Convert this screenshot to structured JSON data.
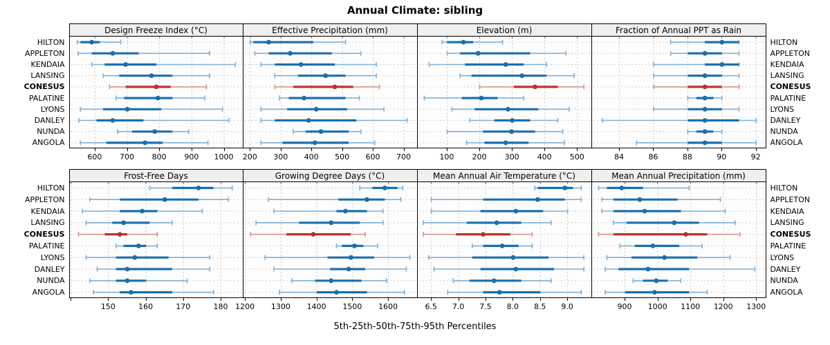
{
  "title": "Annual Climate: sibling",
  "caption": "5th-25th-50th-75th-95th Percentiles",
  "colors": {
    "series": "#1a6fad",
    "series_light": "#7fb0d6",
    "highlight": "#b5342c",
    "highlight_light": "#d8938c",
    "grid": "#c8c8c8",
    "row_guide": "#cccccc",
    "panel_border": "#000000",
    "strip_bg": "#efefef",
    "tick": "#000000"
  },
  "chart_data": {
    "type": "trellis_percentile_dotplot",
    "title": "Annual Climate: sibling",
    "caption": "5th-25th-50th-75th-95th Percentiles",
    "layout": {
      "nrow": 2,
      "ncol": 4,
      "grid": true,
      "legend_position": "none"
    },
    "percentiles": [
      5,
      25,
      50,
      75,
      95
    ],
    "categories": [
      "HILTON",
      "APPLETON",
      "KENDAIA",
      "LANSING",
      "CONESUS",
      "PALATINE",
      "LYONS",
      "DANLEY",
      "NUNDA",
      "ANGOLA"
    ],
    "highlight_category": "CONESUS",
    "panels": [
      {
        "title": "Design Freeze Index (°C)",
        "axis": {
          "min": 520,
          "max": 1060,
          "ticks": [
            600,
            700,
            800,
            900,
            1000
          ],
          "tick_labels": [
            "600",
            "700",
            "800",
            "900",
            "1000"
          ]
        },
        "values": [
          [
            545,
            555,
            590,
            615,
            680
          ],
          [
            548,
            590,
            655,
            735,
            955
          ],
          [
            590,
            630,
            695,
            790,
            1035
          ],
          [
            625,
            675,
            775,
            840,
            955
          ],
          [
            645,
            695,
            790,
            835,
            945
          ],
          [
            665,
            690,
            795,
            840,
            940
          ],
          [
            555,
            625,
            700,
            805,
            995
          ],
          [
            550,
            605,
            655,
            750,
            1015
          ],
          [
            670,
            715,
            785,
            840,
            890
          ],
          [
            555,
            635,
            755,
            810,
            950
          ]
        ]
      },
      {
        "title": "Effective Precipitation (mm)",
        "axis": {
          "min": 178,
          "max": 745,
          "ticks": [
            200,
            300,
            400,
            500,
            600,
            700
          ],
          "tick_labels": [
            "200",
            "300",
            "400",
            "500",
            "600",
            "700"
          ]
        },
        "values": [
          [
            200,
            210,
            260,
            405,
            510
          ],
          [
            215,
            260,
            330,
            465,
            560
          ],
          [
            235,
            280,
            365,
            475,
            610
          ],
          [
            280,
            355,
            445,
            510,
            610
          ],
          [
            280,
            340,
            475,
            535,
            620
          ],
          [
            295,
            325,
            375,
            510,
            555
          ],
          [
            235,
            320,
            415,
            515,
            635
          ],
          [
            235,
            280,
            390,
            545,
            710
          ],
          [
            340,
            380,
            430,
            520,
            560
          ],
          [
            235,
            305,
            410,
            520,
            605
          ]
        ]
      },
      {
        "title": "Elevation (m)",
        "axis": {
          "min": 10,
          "max": 545,
          "ticks": [
            100,
            200,
            300,
            400,
            500
          ],
          "tick_labels": [
            "100",
            "200",
            "300",
            "400",
            "500"
          ]
        },
        "values": [
          [
            85,
            100,
            150,
            180,
            270
          ],
          [
            100,
            140,
            195,
            355,
            465
          ],
          [
            45,
            155,
            280,
            335,
            405
          ],
          [
            140,
            175,
            330,
            405,
            490
          ],
          [
            200,
            305,
            370,
            440,
            520
          ],
          [
            30,
            145,
            205,
            255,
            335
          ],
          [
            115,
            185,
            287,
            380,
            475
          ],
          [
            170,
            245,
            300,
            355,
            440
          ],
          [
            100,
            210,
            298,
            370,
            455
          ],
          [
            160,
            215,
            280,
            350,
            460
          ]
        ]
      },
      {
        "title": "Fraction of Annual PPT as Rain",
        "axis": {
          "min": 82.4,
          "max": 92.6,
          "ticks": [
            84,
            86,
            88,
            90,
            92
          ],
          "tick_labels": [
            "84",
            "86",
            "88",
            "90",
            "92"
          ]
        },
        "values": [
          [
            87,
            89,
            90,
            91,
            91
          ],
          [
            87,
            88,
            89,
            90,
            91
          ],
          [
            86,
            89,
            90,
            91,
            91
          ],
          [
            86,
            88,
            89,
            90,
            91
          ],
          [
            86,
            88,
            89,
            90,
            91
          ],
          [
            88,
            88.5,
            89,
            89.5,
            90
          ],
          [
            86,
            88,
            89,
            90,
            91
          ],
          [
            83,
            88,
            89,
            91,
            92
          ],
          [
            88,
            88.5,
            89,
            89.5,
            90
          ],
          [
            85,
            88,
            89,
            90,
            92
          ]
        ]
      },
      {
        "title": "Frost-Free Days",
        "axis": {
          "min": 139.5,
          "max": 186,
          "ticks": [
            140,
            150,
            160,
            170,
            180
          ],
          "tick_labels": [
            "",
            "150",
            "160",
            "170",
            "180"
          ]
        },
        "values": [
          [
            161,
            167,
            174,
            178,
            183
          ],
          [
            145,
            153,
            165,
            174,
            182
          ],
          [
            143,
            153,
            159,
            163,
            175
          ],
          [
            144,
            151,
            154,
            161,
            167
          ],
          [
            142,
            149,
            153,
            155,
            163
          ],
          [
            152,
            154,
            158,
            160,
            163
          ],
          [
            144,
            152,
            157,
            166,
            177
          ],
          [
            147,
            152,
            155,
            167,
            177
          ],
          [
            145,
            152,
            155,
            160,
            171
          ],
          [
            146,
            153,
            156,
            167,
            178
          ]
        ]
      },
      {
        "title": "Growing Degree Days (°C)",
        "axis": {
          "min": 1195,
          "max": 1682,
          "ticks": [
            1200,
            1300,
            1400,
            1500,
            1600
          ],
          "tick_labels": [
            "1200",
            "1300",
            "1400",
            "1500",
            "1600"
          ]
        },
        "values": [
          [
            1520,
            1555,
            1590,
            1625,
            1640
          ],
          [
            1265,
            1460,
            1540,
            1590,
            1635
          ],
          [
            1280,
            1455,
            1480,
            1540,
            1585
          ],
          [
            1230,
            1350,
            1440,
            1520,
            1585
          ],
          [
            1215,
            1315,
            1390,
            1495,
            1535
          ],
          [
            1455,
            1470,
            1505,
            1530,
            1570
          ],
          [
            1255,
            1430,
            1495,
            1560,
            1660
          ],
          [
            1280,
            1437,
            1489,
            1535,
            1650
          ],
          [
            1330,
            1395,
            1440,
            1525,
            1595
          ],
          [
            1295,
            1400,
            1455,
            1540,
            1645
          ]
        ]
      },
      {
        "title": "Mean Annual Air Temperature (°C)",
        "axis": {
          "min": 6.25,
          "max": 9.45,
          "ticks": [
            6.5,
            7.0,
            7.5,
            8.0,
            8.5,
            9.0
          ],
          "tick_labels": [
            "6.5",
            "7.0",
            "7.5",
            "8.0",
            "8.5",
            "9.0"
          ]
        },
        "values": [
          [
            8.4,
            8.45,
            8.95,
            9.1,
            9.25
          ],
          [
            6.5,
            7.45,
            8.45,
            8.95,
            9.25
          ],
          [
            6.5,
            7.4,
            8.05,
            8.55,
            9.0
          ],
          [
            6.35,
            7.15,
            7.7,
            8.15,
            8.7
          ],
          [
            6.35,
            6.95,
            7.45,
            7.95,
            8.35
          ],
          [
            7.25,
            7.45,
            7.8,
            8.1,
            8.35
          ],
          [
            6.45,
            7.25,
            8.0,
            8.65,
            9.3
          ],
          [
            6.55,
            7.4,
            8.05,
            8.75,
            9.3
          ],
          [
            6.9,
            7.2,
            7.65,
            8.15,
            8.7
          ],
          [
            6.8,
            7.45,
            7.75,
            8.5,
            9.25
          ]
        ]
      },
      {
        "title": "Mean Annual Precipitation (mm)",
        "axis": {
          "min": 800,
          "max": 1330,
          "ticks": [
            900,
            1000,
            1100,
            1200,
            1300
          ],
          "tick_labels": [
            "900",
            "1000",
            "1100",
            "1200",
            "1300"
          ]
        },
        "values": [
          [
            820,
            845,
            890,
            955,
            1095
          ],
          [
            830,
            865,
            945,
            1060,
            1190
          ],
          [
            830,
            865,
            960,
            1070,
            1205
          ],
          [
            865,
            905,
            1050,
            1125,
            1235
          ],
          [
            820,
            865,
            1085,
            1150,
            1250
          ],
          [
            885,
            930,
            985,
            1065,
            1135
          ],
          [
            845,
            920,
            1020,
            1120,
            1220
          ],
          [
            840,
            880,
            970,
            1095,
            1295
          ],
          [
            925,
            955,
            995,
            1030,
            1070
          ],
          [
            840,
            900,
            990,
            1095,
            1150
          ]
        ]
      }
    ]
  }
}
